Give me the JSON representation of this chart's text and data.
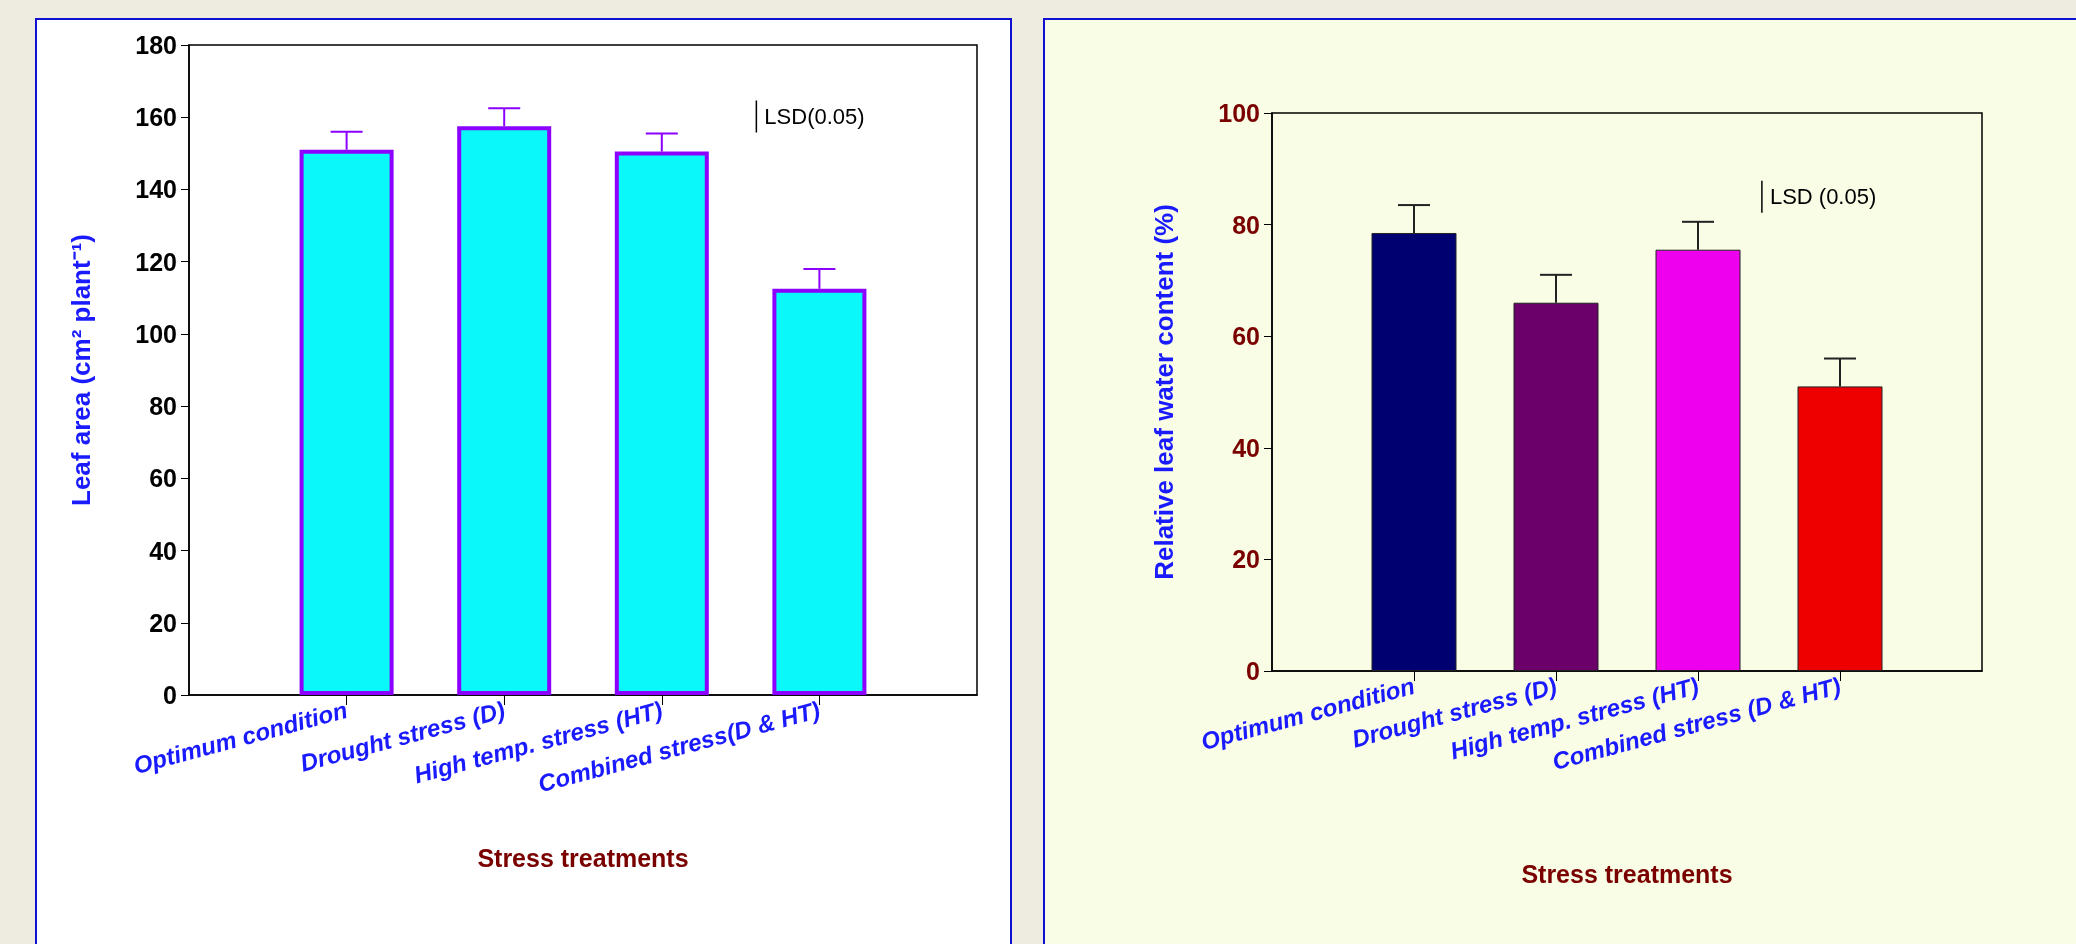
{
  "chart_data": [
    {
      "type": "bar",
      "xlabel": "Stress treatments",
      "ylabel": "Leaf area (cm² plant⁻¹)",
      "categories": [
        "Optimum condition",
        "Drought stress (D)",
        "High temp. stress (HT)",
        "Combined stress(D & HT)"
      ],
      "series": [
        {
          "color": "#0af8fa",
          "values": [
            151,
            157.5,
            150.5,
            112.5
          ],
          "errors": [
            [
              151,
              156
            ],
            [
              157.5,
              162.5
            ],
            [
              150.5,
              155.5
            ],
            [
              112.5,
              118
            ]
          ]
        }
      ],
      "ylim": [
        0,
        180
      ],
      "yticks": [
        0,
        20,
        40,
        60,
        80,
        100,
        120,
        140,
        160,
        180
      ],
      "annotations": [
        "LSD(0.05)"
      ]
    },
    {
      "type": "bar",
      "xlabel": "Stress treatments",
      "ylabel": "Relative leaf water content (%)",
      "categories": [
        "Optimum condition",
        "Drought stress (D)",
        "High temp. stress (HT)",
        "Combined stress (D & HT)"
      ],
      "series": [
        {
          "colors": [
            "#000070",
            "#6b006b",
            "#ee00ee",
            "#ee0000"
          ],
          "values": [
            78.5,
            66,
            75.5,
            51
          ],
          "errors": [
            [
              78.5,
              83.5
            ],
            [
              66,
              71
            ],
            [
              75.5,
              80.5
            ],
            [
              51,
              56
            ]
          ]
        }
      ],
      "ylim": [
        0,
        100
      ],
      "yticks": [
        0,
        20,
        40,
        60,
        80,
        100
      ],
      "annotations": [
        "LSD (0.05)"
      ]
    }
  ]
}
